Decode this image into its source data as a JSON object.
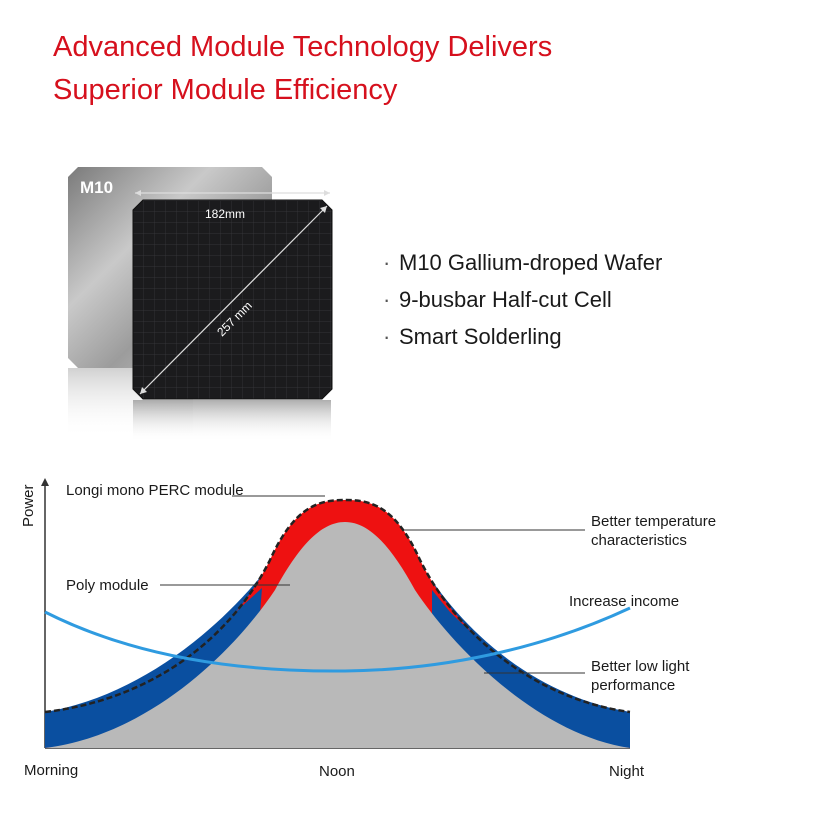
{
  "title": {
    "line1": "Advanced Module Technology Delivers",
    "line2": "Superior Module Efficiency"
  },
  "wafer": {
    "badge": "M10",
    "width_label": "182mm",
    "diagonal_label": "257 mm"
  },
  "features": [
    "M10 Gallium-droped Wafer",
    "9-busbar Half-cut Cell",
    "Smart Solderling"
  ],
  "diagram": {
    "y_axis_label": "Power",
    "x_labels": [
      "Morning",
      "Noon",
      "Night"
    ],
    "callouts": {
      "perc": "Longi mono PERC module",
      "poly": "Poly module",
      "temp_line1": "Better temperature",
      "temp_line2": "characteristics",
      "income": "Increase income",
      "lowlight_line1": "Better low light",
      "lowlight_line2": "performance"
    },
    "colors": {
      "perc": "#ee1111",
      "poly": "#b9b9b9",
      "lowlight": "#0a4fa0",
      "income": "#2f9be0"
    }
  }
}
